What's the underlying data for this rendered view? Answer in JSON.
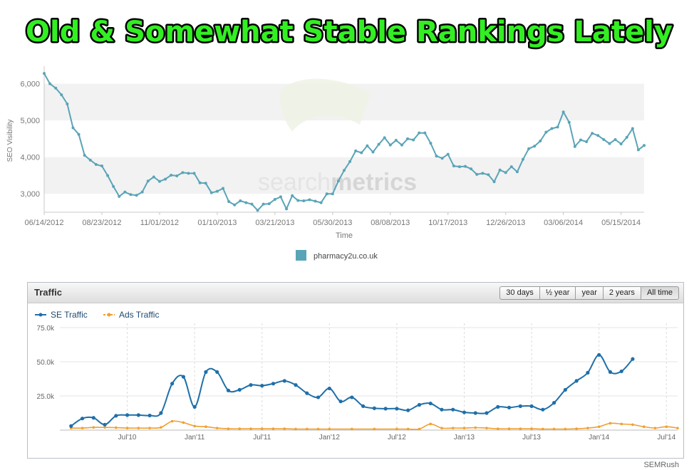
{
  "headline": "Old & Somewhat Stable Rankings Lately",
  "watermark": {
    "part1": "search",
    "part2": "metrics"
  },
  "credit": "SEMRush",
  "traffic_panel": {
    "title": "Traffic",
    "ranges": [
      "30 days",
      "½ year",
      "year",
      "2 years",
      "All time"
    ],
    "active_range": "All time"
  },
  "colors": {
    "headline_fill": "#33ee22",
    "visibility_line": "#5aa4b7",
    "se_traffic": "#1f6fa9",
    "ads_traffic": "#f0a030"
  },
  "chart_data": [
    {
      "type": "line",
      "title": "",
      "xlabel": "Time",
      "ylabel": "SEO Visibility",
      "ylim": [
        2500,
        6400
      ],
      "yticks": [
        3000,
        4000,
        5000,
        6000
      ],
      "ytick_labels": [
        "3,000",
        "4,000",
        "5,000",
        "6,000"
      ],
      "x_tick_labels": [
        "06/14/2012",
        "08/23/2012",
        "11/01/2012",
        "01/10/2013",
        "03/21/2013",
        "05/30/2013",
        "08/08/2013",
        "10/17/2013",
        "12/26/2013",
        "03/06/2014",
        "05/15/2014"
      ],
      "grid": "alternating bands",
      "legend": "bottom-center",
      "series": [
        {
          "name": "pharmacy2u.co.uk",
          "values": [
            6280,
            6000,
            5880,
            5700,
            5450,
            4800,
            4620,
            4050,
            3920,
            3800,
            3760,
            3500,
            3200,
            2930,
            3050,
            2980,
            2960,
            3050,
            3350,
            3460,
            3340,
            3400,
            3510,
            3490,
            3580,
            3560,
            3560,
            3300,
            3290,
            3030,
            3070,
            3150,
            2790,
            2700,
            2810,
            2760,
            2720,
            2550,
            2720,
            2730,
            2850,
            2920,
            2590,
            2950,
            2820,
            2810,
            2840,
            2800,
            2760,
            3000,
            3000,
            3350,
            3640,
            3880,
            4170,
            4120,
            4310,
            4140,
            4350,
            4530,
            4330,
            4460,
            4330,
            4500,
            4470,
            4660,
            4660,
            4380,
            4030,
            3970,
            4080,
            3760,
            3740,
            3750,
            3680,
            3530,
            3560,
            3520,
            3330,
            3650,
            3580,
            3740,
            3600,
            3940,
            4230,
            4300,
            4440,
            4680,
            4780,
            4820,
            5230,
            4950,
            4290,
            4470,
            4420,
            4650,
            4590,
            4480,
            4370,
            4480,
            4360,
            4540,
            4780,
            4200,
            4320
          ]
        }
      ]
    },
    {
      "type": "line",
      "title": "Traffic",
      "xlabel": "",
      "ylabel": "",
      "ylim": [
        0,
        75000
      ],
      "yticks": [
        0,
        25000,
        50000,
        75000
      ],
      "ytick_labels": [
        "",
        "25.0k",
        "50.0k",
        "75.0k"
      ],
      "x_tick_labels": [
        "Jul'10",
        "Jan'11",
        "Jul'11",
        "Jan'12",
        "Jul'12",
        "Jan'13",
        "Jul'13",
        "Jan'14",
        "Jul'14"
      ],
      "x_start": "2010-02",
      "grid": "dashed vertical",
      "legend": "top-left",
      "series": [
        {
          "name": "SE Traffic",
          "values": [
            3000,
            8500,
            9000,
            4000,
            10500,
            11000,
            11000,
            10700,
            12500,
            34000,
            39000,
            17000,
            42500,
            42500,
            29000,
            29500,
            33000,
            32500,
            34000,
            36000,
            33000,
            27000,
            24000,
            30500,
            21000,
            24000,
            17500,
            16000,
            15700,
            15700,
            14500,
            18500,
            19500,
            15000,
            15000,
            13000,
            12500,
            12500,
            17000,
            16500,
            17500,
            17500,
            15000,
            20000,
            29500,
            36000,
            42000,
            55000,
            42500,
            43000,
            52000
          ],
          "dates": [
            "2010-02",
            "2010-03",
            "2010-04",
            "2010-05",
            "2010-06",
            "2010-07",
            "2010-08",
            "2010-09",
            "2010-10",
            "2010-11",
            "2010-12",
            "2011-01",
            "2011-02",
            "2011-03",
            "2011-04",
            "2011-05",
            "2011-06",
            "2011-07",
            "2011-08",
            "2011-09",
            "2011-10",
            "2011-11",
            "2011-12",
            "2012-01",
            "2012-02",
            "2012-03",
            "2012-04",
            "2012-05",
            "2012-06",
            "2012-07",
            "2012-08",
            "2012-09",
            "2012-10",
            "2012-11",
            "2012-12",
            "2013-01",
            "2013-02",
            "2013-03",
            "2013-04",
            "2013-05",
            "2013-06",
            "2013-07",
            "2013-08",
            "2013-09",
            "2013-10",
            "2013-11",
            "2013-12",
            "2014-01",
            "2014-02",
            "2014-03",
            "2014-04"
          ]
        },
        {
          "name": "Ads Traffic",
          "values": [
            1500,
            1500,
            2000,
            2000,
            1800,
            1500,
            1500,
            1500,
            2000,
            6500,
            5500,
            3000,
            2500,
            1500,
            1000,
            1000,
            1000,
            1000,
            1000,
            1000,
            800,
            800,
            800,
            800,
            800,
            800,
            800,
            800,
            800,
            4500,
            1500,
            1500,
            1500,
            1800,
            1500,
            1000,
            1000,
            1000,
            1000,
            800,
            800,
            800,
            1000,
            1500,
            2500,
            5000,
            4500,
            4000,
            2500,
            1500,
            2500,
            1500
          ],
          "dates": [
            "2010-02",
            "2010-03",
            "2010-04",
            "2010-05",
            "2010-06",
            "2010-07",
            "2010-08",
            "2010-09",
            "2010-10",
            "2010-11",
            "2010-12",
            "2011-01",
            "2011-02",
            "2011-03",
            "2011-04",
            "2011-05",
            "2011-06",
            "2011-07",
            "2011-08",
            "2011-09",
            "2011-10",
            "2011-11",
            "2011-12",
            "2012-01",
            "2012-03",
            "2012-05",
            "2012-07",
            "2012-08",
            "2012-09",
            "2012-10",
            "2012-11",
            "2012-12",
            "2013-01",
            "2013-02",
            "2013-03",
            "2013-04",
            "2013-05",
            "2013-06",
            "2013-07",
            "2013-08",
            "2013-09",
            "2013-10",
            "2013-11",
            "2013-12",
            "2014-01",
            "2014-02",
            "2014-03",
            "2014-04",
            "2014-05",
            "2014-06",
            "2014-07",
            "2014-08"
          ]
        }
      ]
    }
  ]
}
